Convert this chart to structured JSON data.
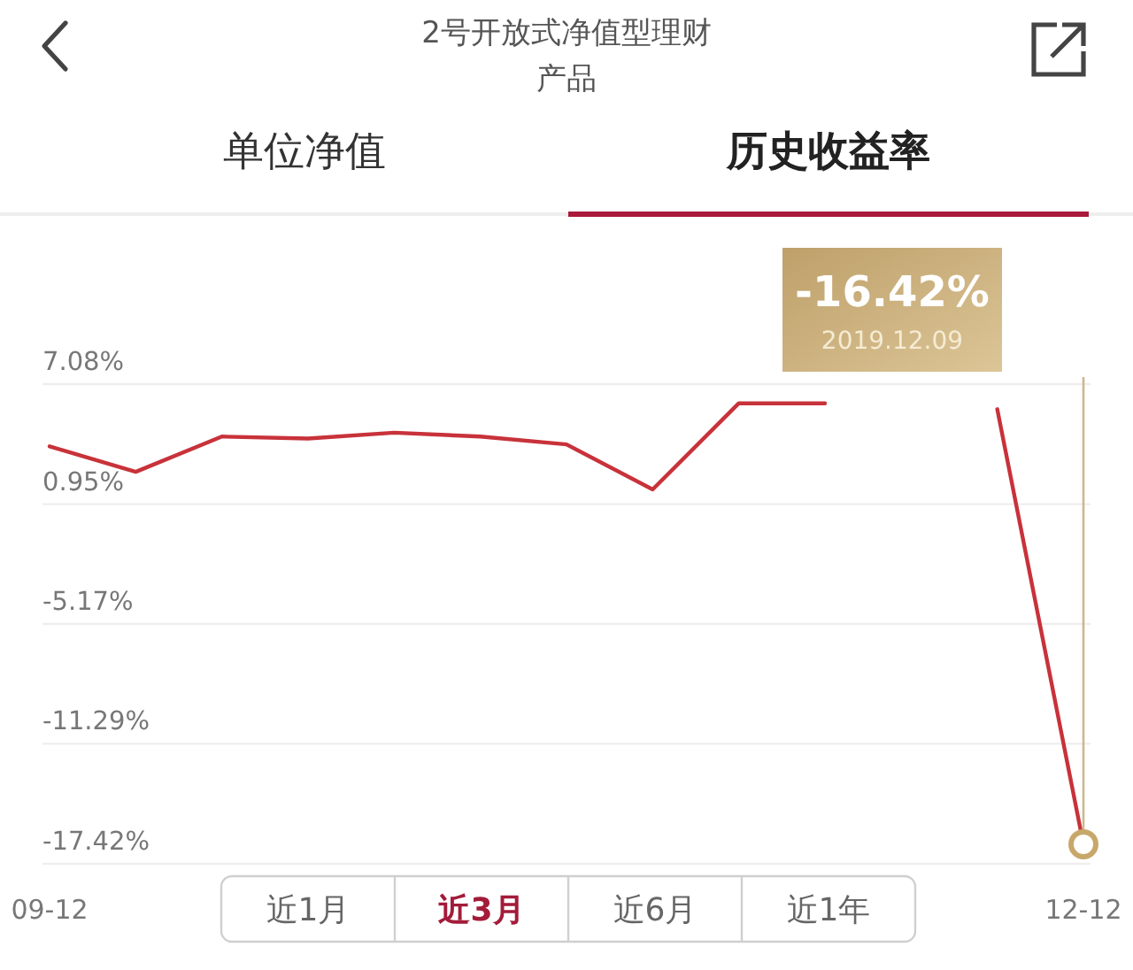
{
  "chart_data": {
    "type": "line",
    "title": "2号开放式净值型理财产品",
    "categories": [
      "09-12",
      null,
      null,
      null,
      null,
      null,
      null,
      null,
      null,
      null,
      null,
      null,
      "12-12"
    ],
    "values": [
      3.9,
      2.6,
      4.4,
      4.3,
      4.6,
      4.4,
      4.0,
      1.7,
      6.1,
      6.1,
      null,
      5.8,
      -16.42
    ],
    "color": "#c8323a",
    "ylim": [
      -17.42,
      7.08
    ],
    "yticks": [
      {
        "value": 7.08,
        "label": "7.08%"
      },
      {
        "value": 0.95,
        "label": "0.95%"
      },
      {
        "value": -5.17,
        "label": "-5.17%"
      },
      {
        "value": -11.29,
        "label": "-11.29%"
      },
      {
        "value": -17.42,
        "label": "-17.42%"
      }
    ],
    "grid": "y",
    "annotations": [
      "-16.42%",
      "2019.12.09",
      "单位净值",
      "历史收益率",
      "近1月",
      "近3月",
      "近6月",
      "近1年"
    ]
  }
}
